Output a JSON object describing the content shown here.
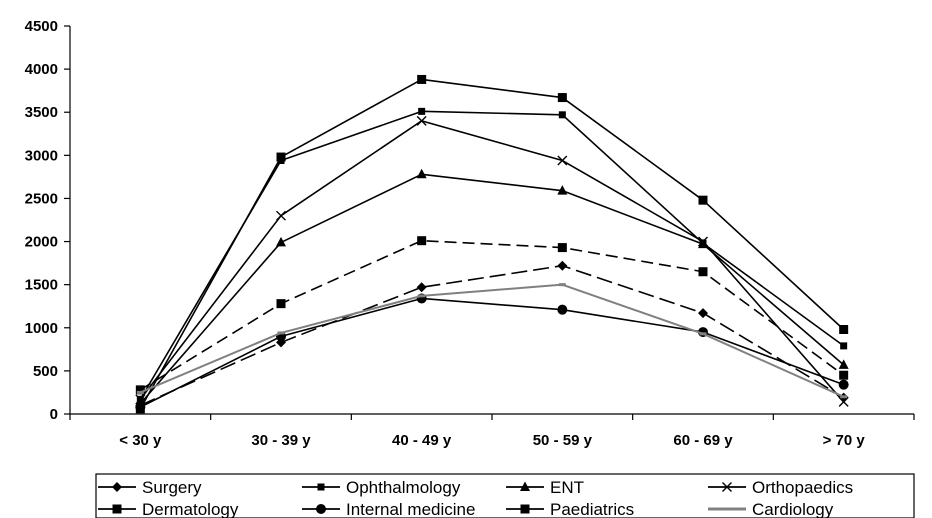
{
  "chart_data": {
    "type": "line",
    "categories": [
      "< 30 y",
      "30 - 39 y",
      "40 - 49 y",
      "50 - 59 y",
      "60 - 69 y",
      "> 70 y"
    ],
    "ylim": [
      0,
      4500
    ],
    "yticks": [
      0,
      500,
      1000,
      1500,
      2000,
      2500,
      3000,
      3500,
      4000,
      4500
    ],
    "grid": false,
    "legend_position": "bottom",
    "series": [
      {
        "name": "Surgery",
        "values": [
          100,
          830,
          1470,
          1720,
          1170,
          190
        ],
        "marker": "diamond",
        "color": "#000000",
        "dash": "long-dash"
      },
      {
        "name": "Ophthalmology",
        "values": [
          170,
          2940,
          3510,
          3470,
          1980,
          790
        ],
        "marker": "small-square",
        "color": "#000000",
        "dash": "solid"
      },
      {
        "name": "ENT",
        "values": [
          120,
          1990,
          2780,
          2590,
          1970,
          570
        ],
        "marker": "triangle",
        "color": "#000000",
        "dash": "solid"
      },
      {
        "name": "Orthopaedics",
        "values": [
          170,
          2300,
          3400,
          2940,
          2000,
          140
        ],
        "marker": "x",
        "color": "#000000",
        "dash": "solid"
      },
      {
        "name": "Dermatology",
        "values": [
          280,
          1280,
          2010,
          1930,
          1650,
          450
        ],
        "marker": "square",
        "color": "#000000",
        "dash": "dash"
      },
      {
        "name": "Internal medicine",
        "values": [
          80,
          900,
          1340,
          1210,
          950,
          340
        ],
        "marker": "circle",
        "color": "#000000",
        "dash": "solid"
      },
      {
        "name": "Paediatrics",
        "values": [
          60,
          2980,
          3880,
          3670,
          2480,
          980
        ],
        "marker": "square",
        "color": "#000000",
        "dash": "solid"
      },
      {
        "name": "Cardiology",
        "values": [
          250,
          940,
          1370,
          1500,
          930,
          200
        ],
        "marker": "dash",
        "color": "#808080",
        "dash": "solid"
      }
    ]
  }
}
